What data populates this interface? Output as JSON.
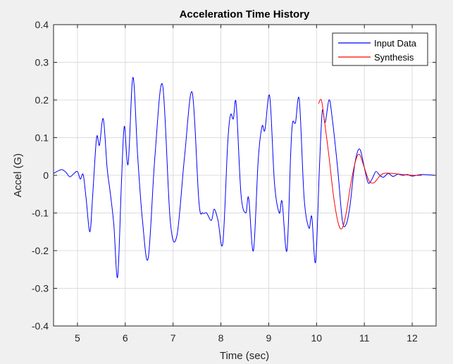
{
  "chart_data": {
    "type": "line",
    "title": "Acceleration Time History",
    "xlabel": "Time (sec)",
    "ylabel": "Accel (G)",
    "xlim": [
      4.5,
      12.5
    ],
    "ylim": [
      -0.4,
      0.4
    ],
    "xticks": [
      5,
      6,
      7,
      8,
      9,
      10,
      11,
      12
    ],
    "xtick_labels": [
      "5",
      "6",
      "7",
      "8",
      "9",
      "10",
      "11",
      "12"
    ],
    "yticks": [
      -0.4,
      -0.3,
      -0.2,
      -0.1,
      0,
      0.1,
      0.2,
      0.3,
      0.4
    ],
    "ytick_labels": [
      "-0.4",
      "-0.3",
      "-0.2",
      "-0.1",
      "0",
      "0.1",
      "0.2",
      "0.3",
      "0.4"
    ],
    "grid": true,
    "legend_position": "top-right",
    "series": [
      {
        "name": "Input Data",
        "color": "#0000ff",
        "points": [
          [
            4.5,
            0.005
          ],
          [
            4.6,
            0.012
          ],
          [
            4.68,
            0.015
          ],
          [
            4.76,
            0.008
          ],
          [
            4.84,
            -0.004
          ],
          [
            4.92,
            0.004
          ],
          [
            5.0,
            0.01
          ],
          [
            5.06,
            -0.01
          ],
          [
            5.12,
            0.002
          ],
          [
            5.18,
            -0.06
          ],
          [
            5.26,
            -0.15
          ],
          [
            5.32,
            -0.05
          ],
          [
            5.4,
            0.1
          ],
          [
            5.46,
            0.08
          ],
          [
            5.54,
            0.15
          ],
          [
            5.62,
            0.02
          ],
          [
            5.68,
            -0.04
          ],
          [
            5.76,
            -0.13
          ],
          [
            5.84,
            -0.27
          ],
          [
            5.92,
            -0.02
          ],
          [
            5.98,
            0.13
          ],
          [
            6.06,
            0.03
          ],
          [
            6.16,
            0.26
          ],
          [
            6.26,
            0.05
          ],
          [
            6.36,
            -0.12
          ],
          [
            6.48,
            -0.22
          ],
          [
            6.62,
            0.05
          ],
          [
            6.78,
            0.24
          ],
          [
            6.94,
            -0.12
          ],
          [
            7.08,
            -0.16
          ],
          [
            7.24,
            0.05
          ],
          [
            7.4,
            0.22
          ],
          [
            7.54,
            -0.07
          ],
          [
            7.62,
            -0.1
          ],
          [
            7.7,
            -0.1
          ],
          [
            7.8,
            -0.12
          ],
          [
            7.86,
            -0.09
          ],
          [
            7.94,
            -0.12
          ],
          [
            8.04,
            -0.18
          ],
          [
            8.14,
            0.08
          ],
          [
            8.2,
            0.16
          ],
          [
            8.26,
            0.15
          ],
          [
            8.32,
            0.19
          ],
          [
            8.42,
            -0.05
          ],
          [
            8.52,
            -0.1
          ],
          [
            8.58,
            -0.06
          ],
          [
            8.68,
            -0.2
          ],
          [
            8.78,
            0.04
          ],
          [
            8.86,
            0.13
          ],
          [
            8.92,
            0.12
          ],
          [
            9.02,
            0.21
          ],
          [
            9.12,
            -0.02
          ],
          [
            9.22,
            -0.1
          ],
          [
            9.28,
            -0.07
          ],
          [
            9.38,
            -0.2
          ],
          [
            9.46,
            0.06
          ],
          [
            9.5,
            0.14
          ],
          [
            9.56,
            0.14
          ],
          [
            9.64,
            0.2
          ],
          [
            9.74,
            -0.06
          ],
          [
            9.84,
            -0.14
          ],
          [
            9.9,
            -0.11
          ],
          [
            9.98,
            -0.23
          ],
          [
            10.06,
            0.02
          ],
          [
            10.12,
            0.17
          ],
          [
            10.18,
            0.14
          ],
          [
            10.26,
            0.2
          ],
          [
            10.32,
            0.16
          ],
          [
            10.44,
            0.02
          ],
          [
            10.54,
            -0.12
          ],
          [
            10.62,
            -0.13
          ],
          [
            10.7,
            -0.08
          ],
          [
            10.8,
            0.03
          ],
          [
            10.9,
            0.07
          ],
          [
            11.0,
            0.02
          ],
          [
            11.08,
            -0.02
          ],
          [
            11.16,
            -0.01
          ],
          [
            11.24,
            0.01
          ],
          [
            11.32,
            0.0
          ],
          [
            11.4,
            -0.005
          ],
          [
            11.5,
            0.005
          ],
          [
            11.6,
            -0.003
          ],
          [
            11.7,
            0.003
          ],
          [
            11.8,
            0.0
          ],
          [
            11.9,
            0.002
          ],
          [
            12.0,
            -0.002
          ],
          [
            12.2,
            0.002
          ],
          [
            12.5,
            0.0
          ]
        ]
      },
      {
        "name": "Synthesis",
        "color": "#ff0000",
        "points": [
          [
            10.04,
            0.19
          ],
          [
            10.1,
            0.2
          ],
          [
            10.16,
            0.15
          ],
          [
            10.26,
            0.05
          ],
          [
            10.36,
            -0.06
          ],
          [
            10.46,
            -0.13
          ],
          [
            10.54,
            -0.14
          ],
          [
            10.62,
            -0.1
          ],
          [
            10.72,
            -0.02
          ],
          [
            10.82,
            0.04
          ],
          [
            10.9,
            0.055
          ],
          [
            11.0,
            0.02
          ],
          [
            11.1,
            -0.015
          ],
          [
            11.2,
            -0.02
          ],
          [
            11.3,
            -0.005
          ],
          [
            11.4,
            0.005
          ],
          [
            11.6,
            0.005
          ],
          [
            11.8,
            0.002
          ],
          [
            12.0,
            0.0
          ],
          [
            12.2,
            0.0
          ]
        ]
      }
    ]
  }
}
